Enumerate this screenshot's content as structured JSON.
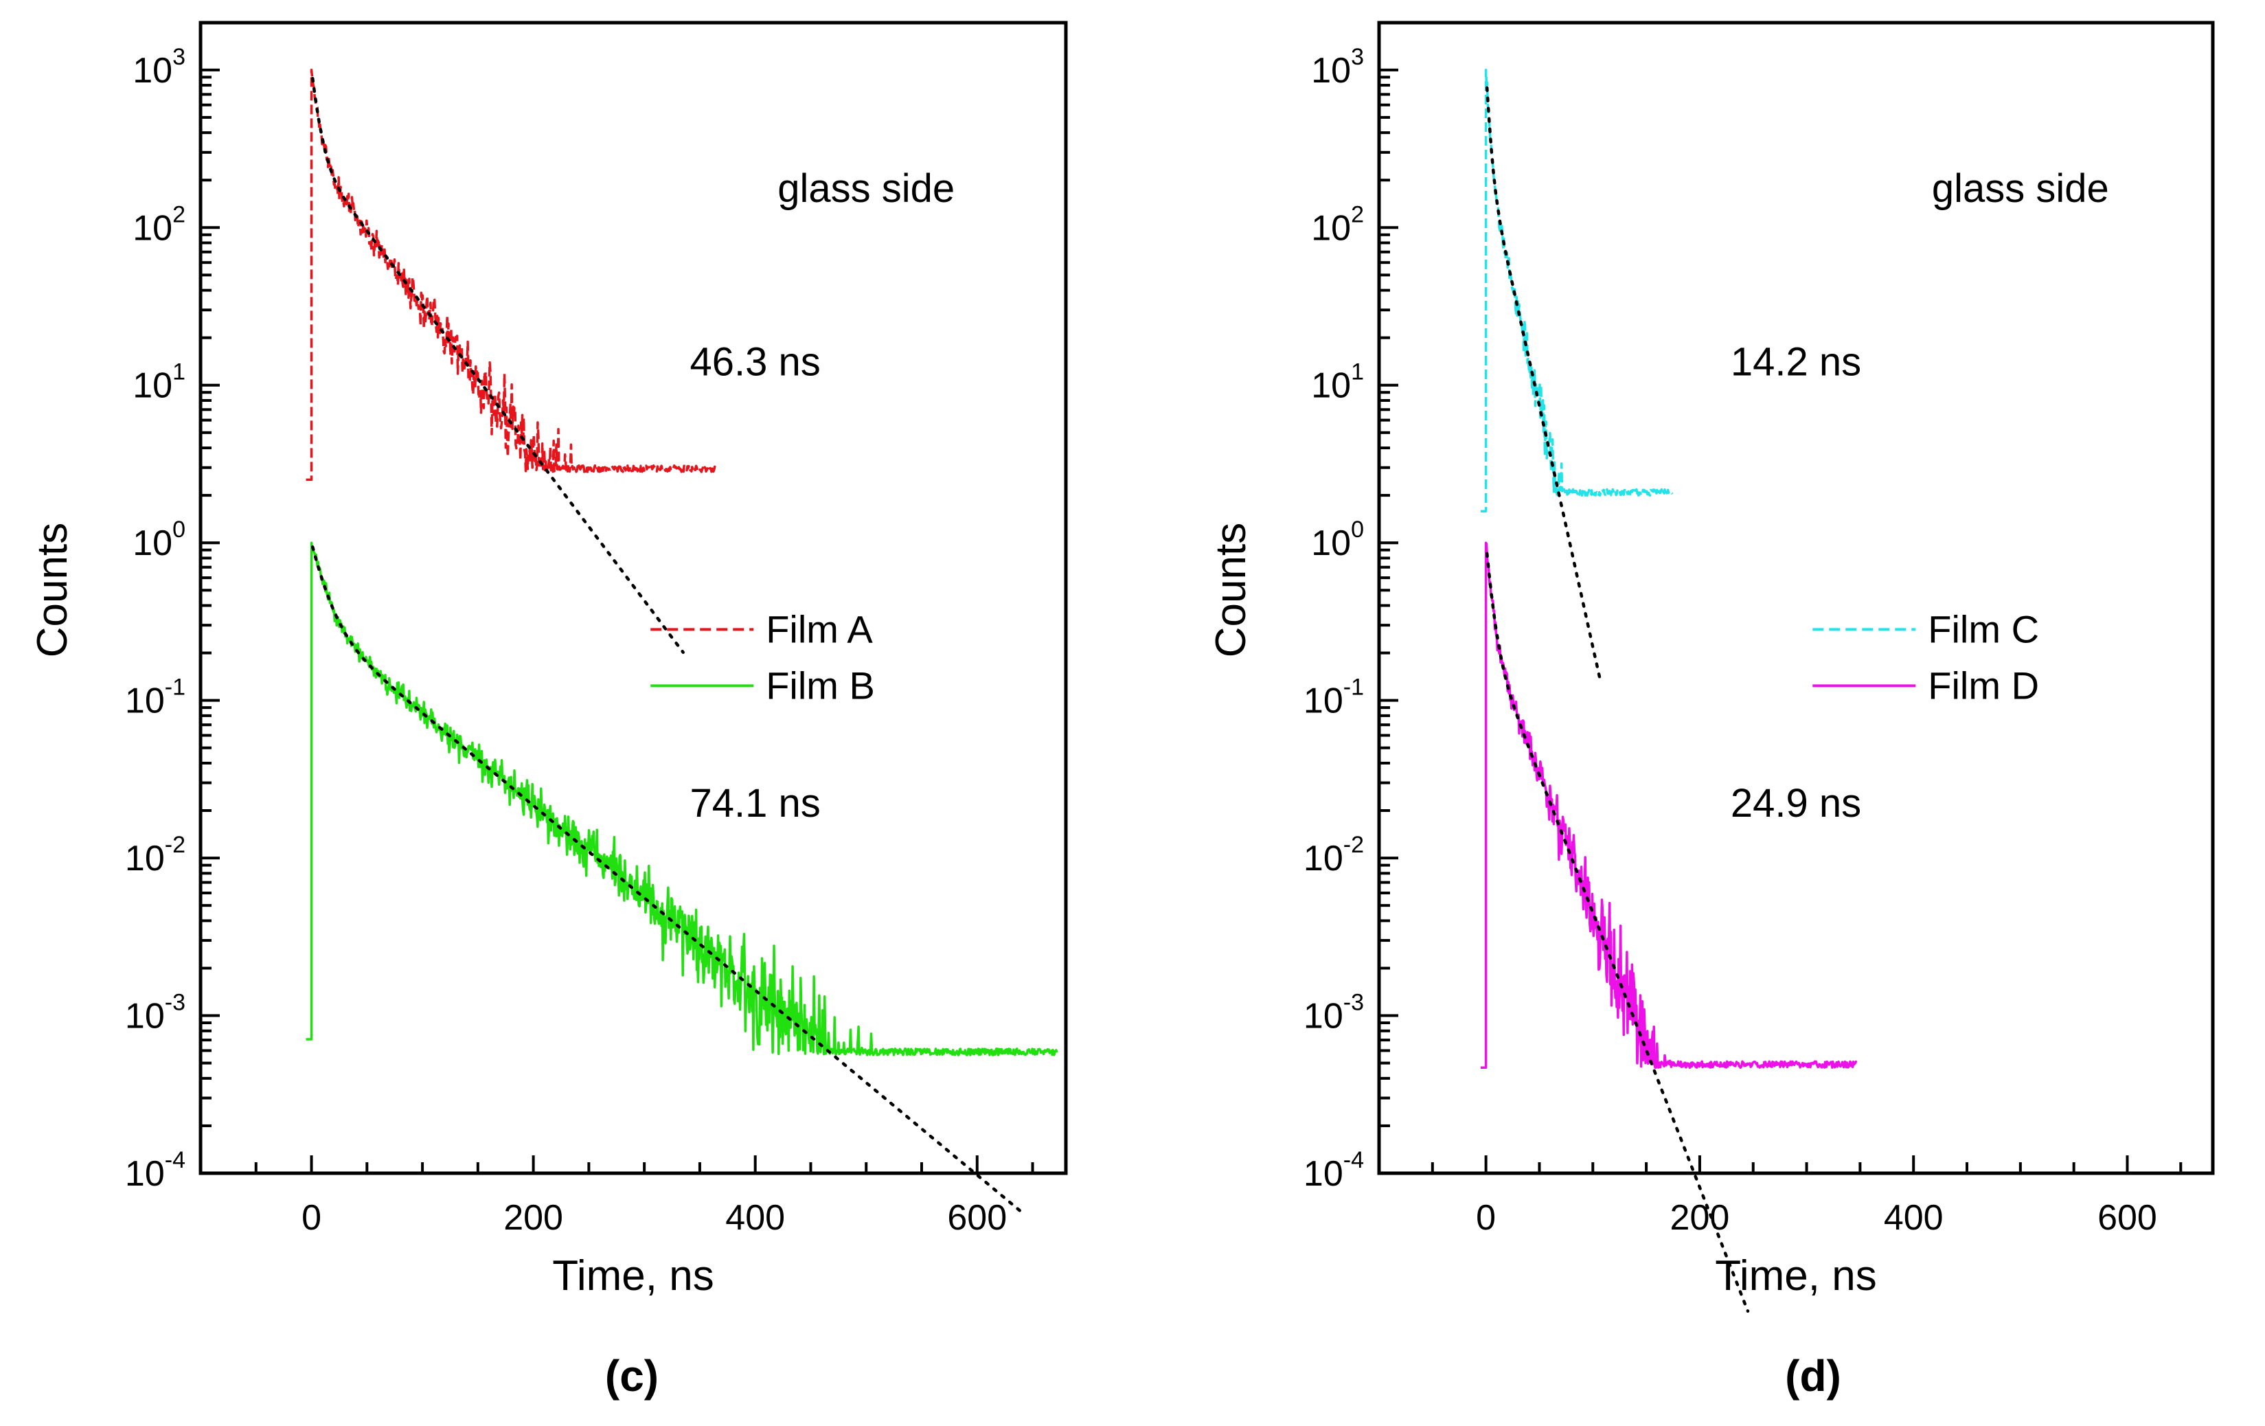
{
  "chart_data": [
    {
      "type": "line",
      "panel_label": "(c)",
      "xlabel": "Time, ns",
      "ylabel": "Counts",
      "yscale": "log",
      "xlim": [
        -100,
        680
      ],
      "ylim_log10": [
        -4,
        3.3
      ],
      "x_ticks": [
        0,
        200,
        400,
        600
      ],
      "x_tick_labels": [
        "0",
        "200",
        "400",
        "600"
      ],
      "x_minor_step": 50,
      "y_ticks_exp": [
        3,
        2,
        1,
        0,
        -1,
        -2,
        -3,
        -4
      ],
      "y_tick_base": "10",
      "y_tick_exp_labels": [
        "3",
        "2",
        "1",
        "0",
        "-1",
        "-2",
        "-3",
        "-4"
      ],
      "annotations": [
        {
          "name": "side-label",
          "text": "glass side",
          "x": 500,
          "y_exp": 2.25
        },
        {
          "name": "lifetime-top",
          "text": "46.3 ns",
          "x": 400,
          "y_exp": 1.15
        },
        {
          "name": "lifetime-bottom",
          "text": "74.1 ns",
          "x": 400,
          "y_exp": -1.65
        }
      ],
      "legend": {
        "placement": "center-right",
        "entries": [
          "Film A",
          "Film B"
        ]
      },
      "series": [
        {
          "name": "Film A",
          "color": "#e8141c",
          "dash": "dashed",
          "peak_exp": 3.0,
          "baseline_exp": 0.4,
          "floor_exp": 0.45,
          "t_end": 365,
          "decay": [
            [
              0.72,
              6
            ],
            [
              0.28,
              46.3
            ]
          ],
          "noise": 0.07,
          "seed": 11
        },
        {
          "name": "Film B",
          "color": "#22e010",
          "dash": "solid",
          "peak_exp": 0.0,
          "baseline_exp": -3.15,
          "floor_exp": -3.25,
          "t_end": 672,
          "decay": [
            [
              0.68,
              12
            ],
            [
              0.32,
              74.1
            ]
          ],
          "noise": 0.06,
          "seed": 23
        }
      ],
      "fits": [
        {
          "name": "fit-Film A",
          "color": "#000000",
          "start_exp": 3.0,
          "t_end": 335,
          "decay": [
            [
              0.72,
              6
            ],
            [
              0.28,
              46.3
            ]
          ]
        },
        {
          "name": "fit-Film B",
          "color": "#000000",
          "start_exp": 0.0,
          "t_end": 640,
          "decay": [
            [
              0.68,
              12
            ],
            [
              0.32,
              74.1
            ]
          ]
        }
      ]
    },
    {
      "type": "line",
      "panel_label": "(d)",
      "xlabel": "Time, ns",
      "ylabel": "Counts",
      "yscale": "log",
      "xlim": [
        -100,
        680
      ],
      "ylim_log10": [
        -4,
        3.3
      ],
      "x_ticks": [
        0,
        200,
        400,
        600
      ],
      "x_tick_labels": [
        "0",
        "200",
        "400",
        "600"
      ],
      "x_minor_step": 50,
      "y_ticks_exp": [
        3,
        2,
        1,
        0,
        -1,
        -2,
        -3,
        -4
      ],
      "y_tick_base": "10",
      "y_tick_exp_labels": [
        "3",
        "2",
        "1",
        "0",
        "-1",
        "-2",
        "-3",
        "-4"
      ],
      "annotations": [
        {
          "name": "side-label",
          "text": "glass side",
          "x": 500,
          "y_exp": 2.25
        },
        {
          "name": "lifetime-top",
          "text": "14.2 ns",
          "x": 290,
          "y_exp": 1.15
        },
        {
          "name": "lifetime-bottom",
          "text": "24.9 ns",
          "x": 290,
          "y_exp": -1.65
        }
      ],
      "legend": {
        "placement": "center-right",
        "entries": [
          "Film C",
          "Film D"
        ]
      },
      "series": [
        {
          "name": "Film C",
          "color": "#22e4e8",
          "dash": "dashed",
          "peak_exp": 3.0,
          "baseline_exp": 0.2,
          "floor_exp": 0.3,
          "t_end": 175,
          "decay": [
            [
              0.75,
              3
            ],
            [
              0.25,
              14.2
            ]
          ],
          "noise": 0.06,
          "seed": 37
        },
        {
          "name": "Film D",
          "color": "#ee10e8",
          "dash": "solid",
          "peak_exp": 0.0,
          "baseline_exp": -3.33,
          "floor_exp": -3.33,
          "t_end": 347,
          "decay": [
            [
              0.75,
              5
            ],
            [
              0.25,
              24.9
            ]
          ],
          "noise": 0.07,
          "seed": 51
        }
      ],
      "fits": [
        {
          "name": "fit-Film C",
          "color": "#000000",
          "start_exp": 3.0,
          "t_end": 108,
          "decay": [
            [
              0.75,
              3
            ],
            [
              0.25,
              14.2
            ]
          ]
        },
        {
          "name": "fit-Film D",
          "color": "#000000",
          "start_exp": 0.0,
          "t_end": 245,
          "decay": [
            [
              0.75,
              5
            ],
            [
              0.25,
              24.9
            ]
          ]
        }
      ]
    }
  ]
}
